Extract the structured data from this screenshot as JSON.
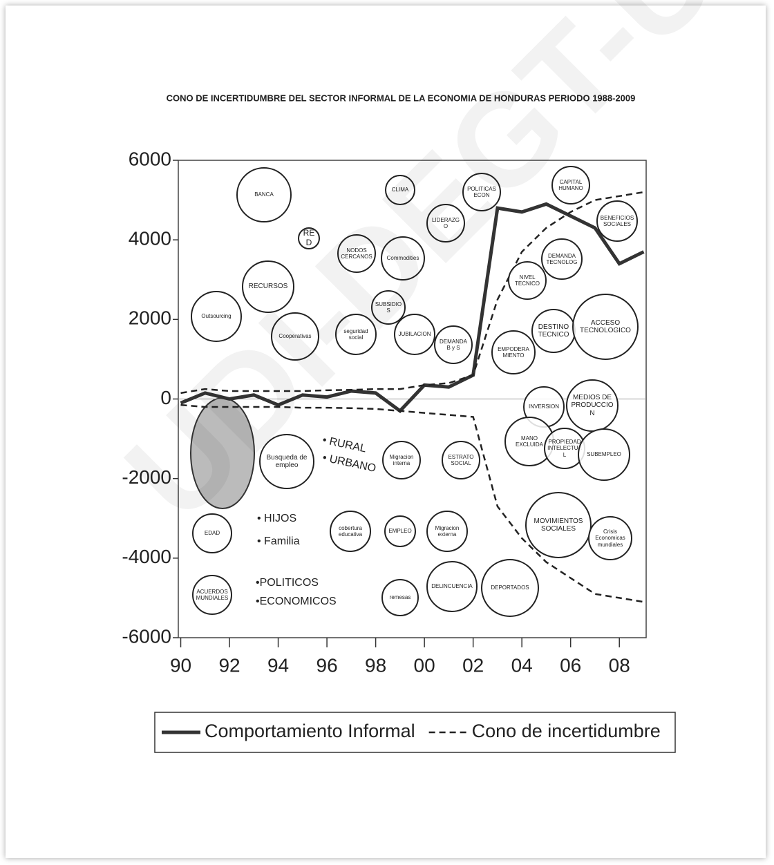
{
  "chart_data": {
    "type": "line",
    "title": "CONO DE INCERTIDUMBRE DEL SECTOR INFORMAL DE LA ECONOMIA DE HONDURAS PERIODO 1988-2009",
    "x": [
      1990,
      1991,
      1992,
      1993,
      1994,
      1995,
      1996,
      1997,
      1998,
      1999,
      2000,
      2001,
      2002,
      2003,
      2004,
      2005,
      2006,
      2007,
      2008,
      2009
    ],
    "series": [
      {
        "name": "Comportamiento Informal",
        "color": "#333333",
        "style": "solid",
        "values": [
          -100,
          150,
          0,
          100,
          -150,
          100,
          50,
          200,
          150,
          -300,
          350,
          300,
          600,
          4800,
          4700,
          4900,
          4600,
          4300,
          3400,
          3700
        ]
      },
      {
        "name": "Cono de incertidumbre",
        "color": "#222222",
        "style": "dashed",
        "values": [
          150,
          250,
          200,
          200,
          200,
          200,
          220,
          230,
          250,
          250,
          350,
          400,
          600,
          2500,
          3700,
          4300,
          4700,
          5000,
          5100,
          5200
        ]
      },
      {
        "name": "Cono de incertidumbre",
        "color": "#222222",
        "style": "dashed",
        "values": [
          -150,
          -200,
          -200,
          -200,
          -200,
          -220,
          -220,
          -230,
          -250,
          -300,
          -350,
          -400,
          -450,
          -2700,
          -3500,
          -4100,
          -4500,
          -4900,
          -5000,
          -5100
        ]
      }
    ],
    "xlim": [
      1989.9,
      2009.1
    ],
    "xticks": [
      {
        "value": 1990,
        "label": "90"
      },
      {
        "value": 1992,
        "label": "92"
      },
      {
        "value": 1994,
        "label": "94"
      },
      {
        "value": 1996,
        "label": "96"
      },
      {
        "value": 1998,
        "label": "98"
      },
      {
        "value": 2000,
        "label": "00"
      },
      {
        "value": 2002,
        "label": "02"
      },
      {
        "value": 2004,
        "label": "04"
      },
      {
        "value": 2006,
        "label": "06"
      },
      {
        "value": 2008,
        "label": "08"
      }
    ],
    "ylim": [
      -6000,
      6000
    ],
    "yticks": [
      6000,
      4000,
      2000,
      0,
      -2000,
      -4000,
      -6000
    ],
    "grid": false,
    "annotations": [
      "BANCA",
      "RED",
      "NODOS CERCANOS",
      "CLIMA",
      "LIDERAZGO",
      "Commodities",
      "POLITICAS ECON",
      "CAPITAL HUMANO",
      "BENEFICIOS SOCIALES",
      "RECURSOS",
      "Outsourcing",
      "Cooperativas",
      "SUBSIDIOS",
      "seguridad social",
      "JUBILACION",
      "DEMANDA B y S",
      "NIVEL TECNICO",
      "DEMANDA TECNOLOG",
      "DESTINO TECNICO",
      "ACCESO TECNOLOGICO",
      "EMPODERA MIENTO",
      "INVERSION",
      "MEDIOS DE PRODUCCION",
      "MANO EXCLUIDA",
      "PROPIEDAD INTELECTUAL",
      "SUBEMPLEO",
      "MOVIMIENTOS SOCIALES",
      "Crisis Economicas mundiales",
      "Busqueda de empleo",
      "Migracion interna",
      "ESTRATO SOCIAL",
      "cobertura educativa",
      "EMPLEO",
      "Migracion externa",
      "remesas",
      "DELINCUENCIA",
      "DEPORTADOS",
      "EDAD",
      "ACUERDOS MUNDIALES"
    ],
    "notes": [
      "• RURAL",
      "• URBANO",
      "• HIJOS",
      "• Familia",
      "•POLITICOS",
      "•ECONOMICOS"
    ],
    "watermark": "UDI-DEGT-UNAH"
  }
}
